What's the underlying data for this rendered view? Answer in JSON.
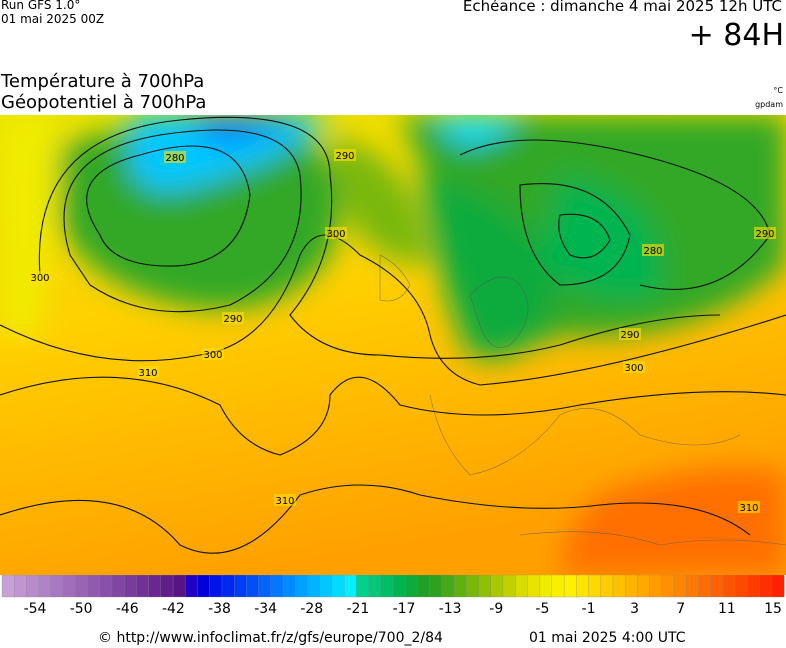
{
  "header": {
    "run": "Run GFS 1.0°",
    "run_date": "01 mai 2025 00Z",
    "echeance": "Echéance : dimanche 4 mai 2025 12h UTC",
    "lead": "+ 84H"
  },
  "titles": {
    "line1": "Température à 700hPa",
    "line2": "Géopotentiel à 700hPa",
    "unit_temp": "°C",
    "unit_geo": "gpdam"
  },
  "contour_labels": [
    "280",
    "290",
    "300",
    "310",
    "300",
    "290",
    "310",
    "280",
    "290",
    "300",
    "310",
    "290",
    "300"
  ],
  "legend": {
    "colors": [
      "#c8a0d8",
      "#c096d2",
      "#b88ccc",
      "#b082c6",
      "#a878c0",
      "#a06eba",
      "#9864b4",
      "#905aae",
      "#8850a8",
      "#8046a2",
      "#783c9c",
      "#703296",
      "#682890",
      "#601e8a",
      "#581484",
      "#1e00c8",
      "#0000dc",
      "#0014e6",
      "#0028f0",
      "#003cf5",
      "#0050fa",
      "#0064ff",
      "#0078ff",
      "#008cff",
      "#00a0ff",
      "#00b4ff",
      "#00c8ff",
      "#00dcff",
      "#00f0ff",
      "#00d28c",
      "#00c878",
      "#00be64",
      "#00b450",
      "#10aa3c",
      "#20a028",
      "#30a020",
      "#48a818",
      "#60b010",
      "#78b808",
      "#90c000",
      "#a8c800",
      "#c0d000",
      "#d8dc00",
      "#e8e400",
      "#f0ec00",
      "#f8f000",
      "#fff000",
      "#ffe400",
      "#ffd800",
      "#ffcc00",
      "#ffc000",
      "#ffb400",
      "#ffa800",
      "#ff9c00",
      "#ff9000",
      "#ff8400",
      "#ff7800",
      "#ff6c00",
      "#ff6000",
      "#ff5400",
      "#ff4800",
      "#ff3c00",
      "#ff3000",
      "#ff2000"
    ],
    "labels": [
      "-54",
      "-50",
      "-46",
      "-42",
      "-38",
      "-34",
      "-28",
      "-21",
      "-17",
      "-13",
      "-9",
      "-5",
      "-1",
      "3",
      "7",
      "11",
      "15"
    ]
  },
  "footer": {
    "source": "© http://www.infoclimat.fr/z/gfs/europe/700_2/84",
    "date": "01 mai 2025  4:00 UTC"
  }
}
